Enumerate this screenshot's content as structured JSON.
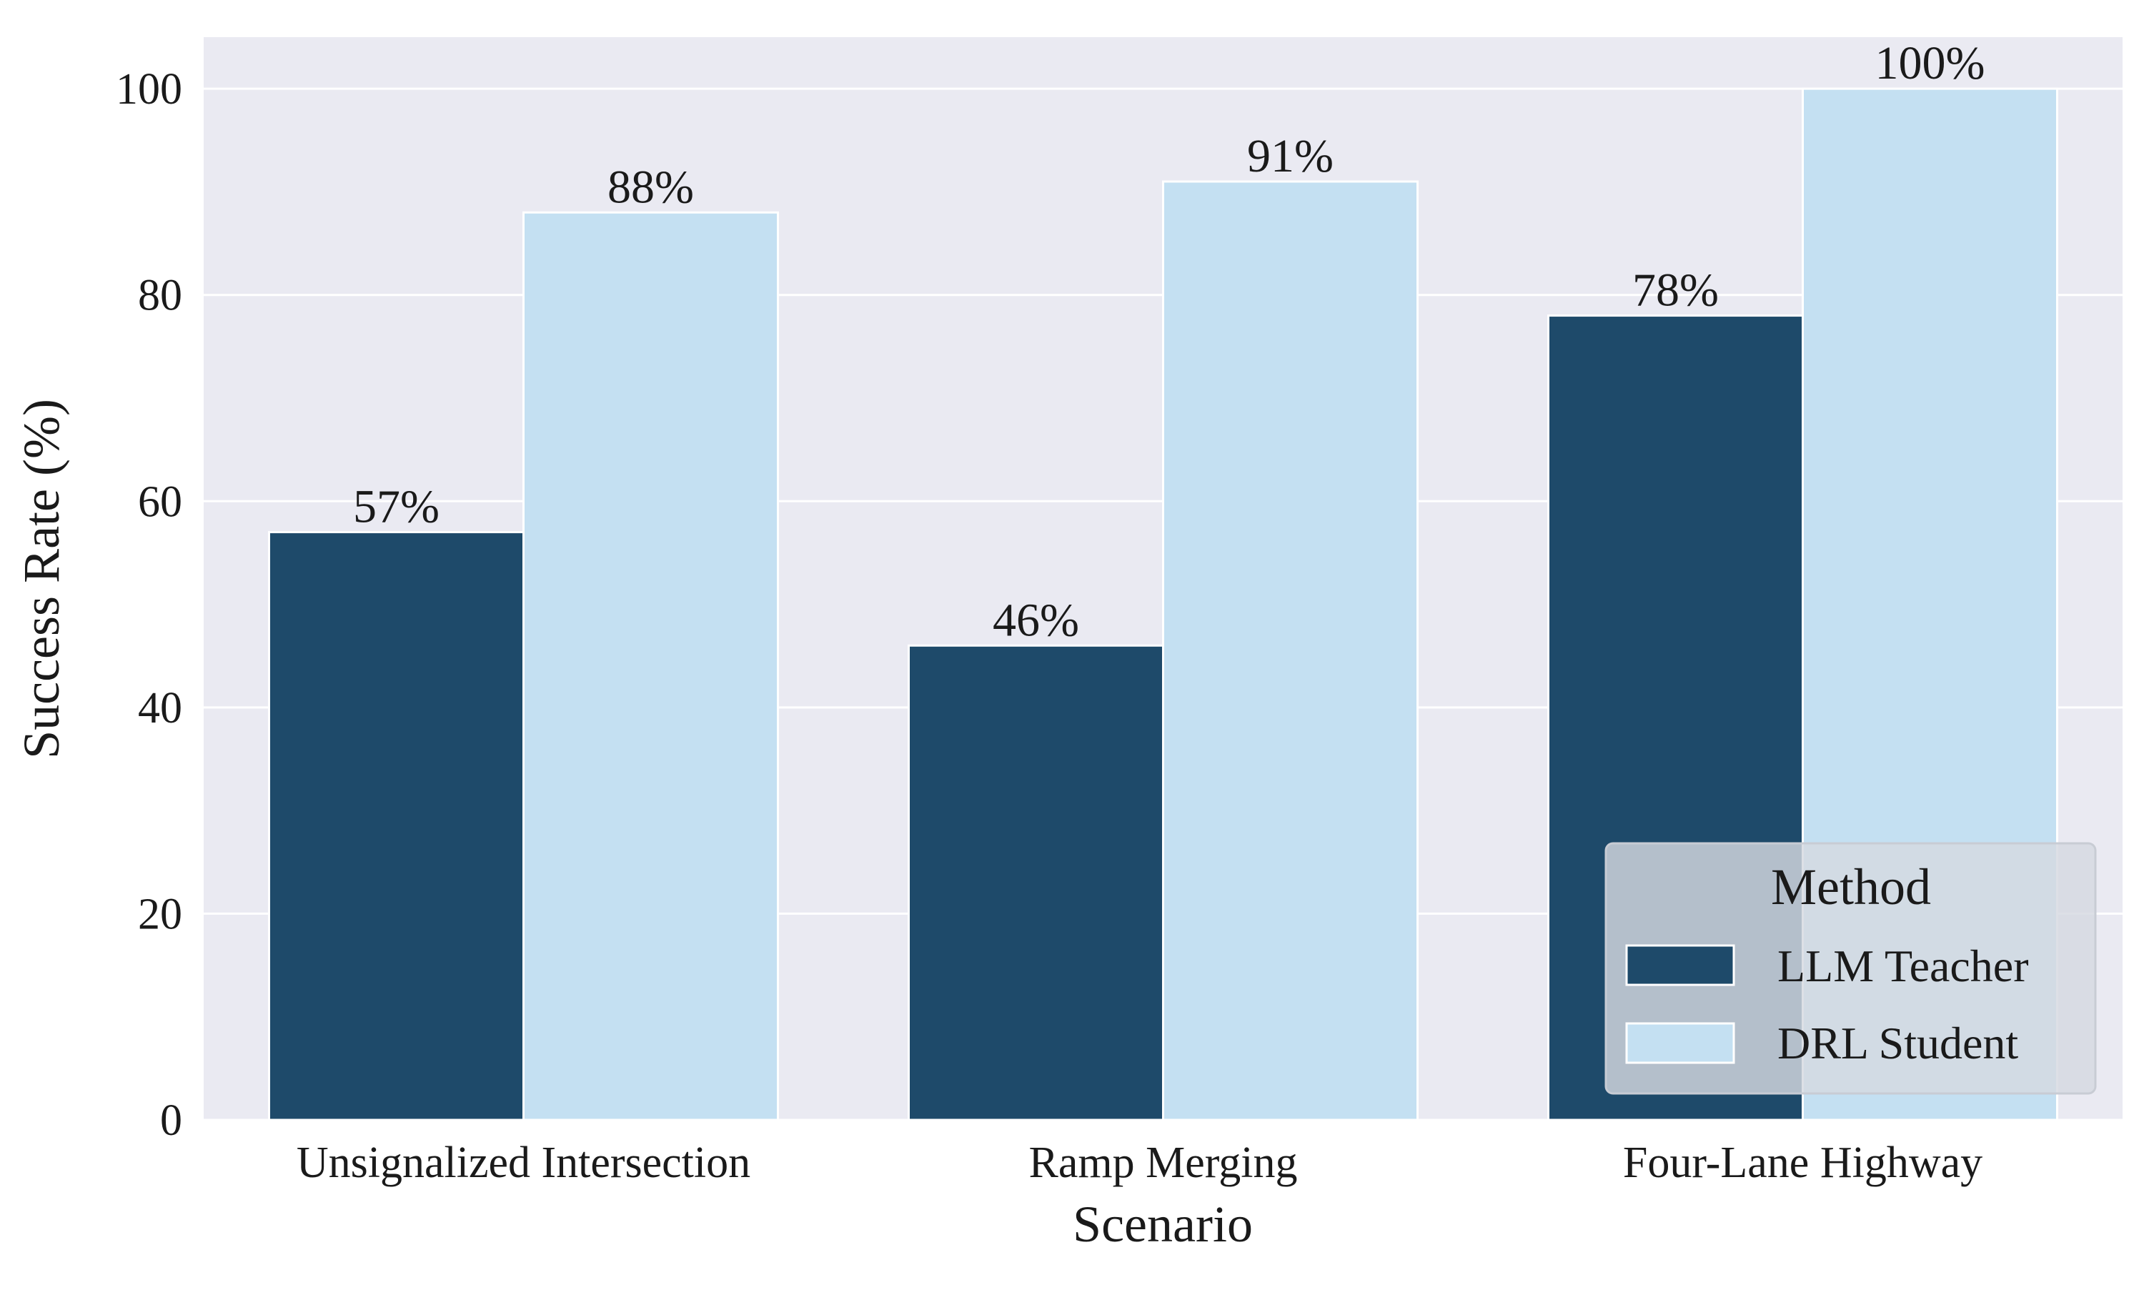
{
  "chart_data": {
    "type": "bar",
    "title": "",
    "xlabel": "Scenario",
    "ylabel": "Success Rate (%)",
    "categories": [
      "Unsignalized Intersection",
      "Ramp Merging",
      "Four-Lane Highway"
    ],
    "series": [
      {
        "name": "LLM Teacher",
        "values": [
          57,
          46,
          78
        ],
        "color": "#1e4a6a",
        "labels": [
          "57%",
          "46%",
          "78%"
        ]
      },
      {
        "name": "DRL Student",
        "values": [
          88,
          91,
          100
        ],
        "color": "#c4e0f2",
        "labels": [
          "88%",
          "91%",
          "100%"
        ]
      }
    ],
    "ylim": [
      0,
      105
    ],
    "yticks": [
      0,
      20,
      40,
      60,
      80,
      100
    ],
    "grid": true,
    "legend": {
      "title": "Method",
      "placement": "lower-right"
    },
    "colors": {
      "plot_background": "#eaeaf2",
      "grid": "#ffffff",
      "bar_edge": "#ffffff"
    }
  }
}
